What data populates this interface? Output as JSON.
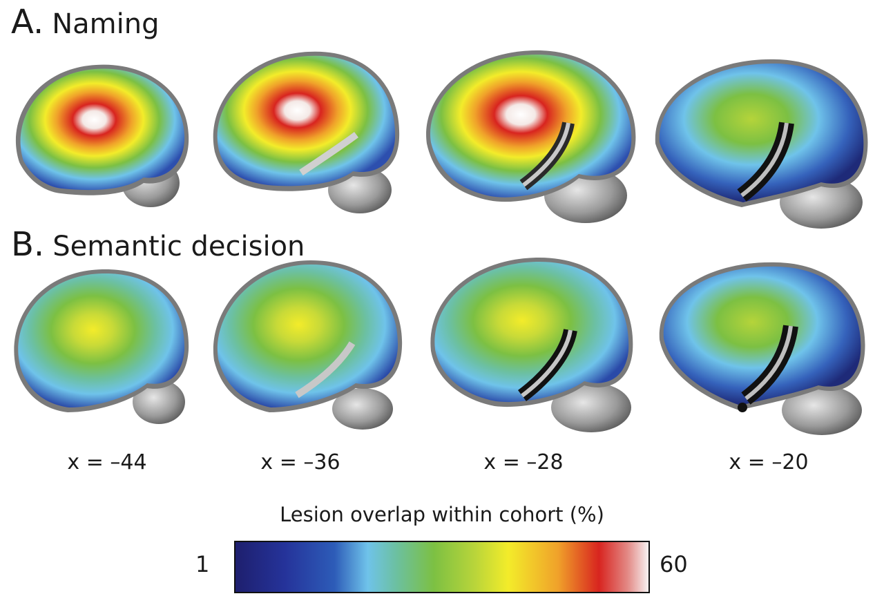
{
  "panels": {
    "a": {
      "letter": "A.",
      "title": "Naming"
    },
    "b": {
      "letter": "B.",
      "title": "Semantic decision"
    }
  },
  "slices": [
    "x = –44",
    "x = –36",
    "x = –28",
    "x = –20"
  ],
  "colorbar": {
    "title": "Lesion overlap within cohort (%)",
    "min": "1",
    "max": "60",
    "colors": [
      "#1e1f6e",
      "#25339a",
      "#2d5cb8",
      "#6fc3ea",
      "#6cc0a0",
      "#7cc043",
      "#b9d53a",
      "#f3ec2a",
      "#f0a22a",
      "#d8241f",
      "#f7f2f2"
    ]
  }
}
